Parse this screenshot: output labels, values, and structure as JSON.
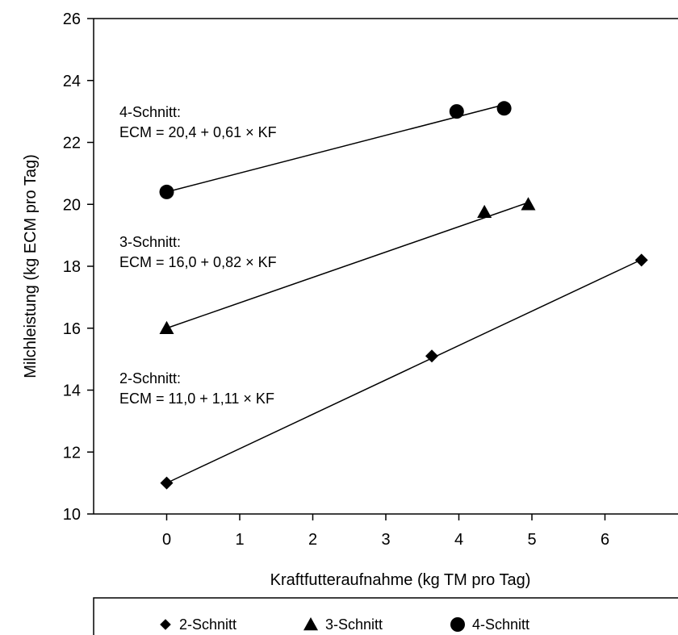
{
  "chart_data": {
    "type": "scatter",
    "xlabel": "Kraftfutteraufnahme (kg TM pro Tag)",
    "ylabel": "Milchleistung (kg ECM pro Tag)",
    "xlim": [
      -1,
      7
    ],
    "ylim": [
      10,
      26
    ],
    "xticks": [
      0,
      1,
      2,
      3,
      4,
      5,
      6
    ],
    "yticks": [
      10,
      12,
      14,
      16,
      18,
      20,
      22,
      24,
      26
    ],
    "grid": false,
    "legend_position": "bottom",
    "series": [
      {
        "name": "2-Schnitt",
        "marker": "diamond",
        "points": [
          [
            0,
            11.0
          ],
          [
            3.63,
            15.1
          ],
          [
            6.5,
            18.2
          ]
        ],
        "fit": {
          "intercept": 11.0,
          "slope": 1.11,
          "x_range": [
            0,
            6.5
          ]
        },
        "annotation": [
          "2-Schnitt:",
          "ECM = 11,0 + 1,11 × KF"
        ]
      },
      {
        "name": "3-Schnitt",
        "marker": "triangle",
        "points": [
          [
            0,
            16.0
          ],
          [
            4.35,
            19.75
          ],
          [
            4.95,
            20.0
          ]
        ],
        "fit": {
          "intercept": 16.0,
          "slope": 0.82,
          "x_range": [
            0,
            4.95
          ]
        },
        "annotation": [
          "3-Schnitt:",
          "ECM = 16,0 + 0,82 × KF"
        ]
      },
      {
        "name": "4-Schnitt",
        "marker": "circle",
        "points": [
          [
            0,
            20.4
          ],
          [
            3.97,
            23.0
          ],
          [
            4.62,
            23.1
          ]
        ],
        "fit": {
          "intercept": 20.4,
          "slope": 0.61,
          "x_range": [
            0,
            4.62
          ]
        },
        "annotation": [
          "4-Schnitt:",
          "ECM = 20,4 + 0,61 × KF"
        ]
      }
    ]
  }
}
